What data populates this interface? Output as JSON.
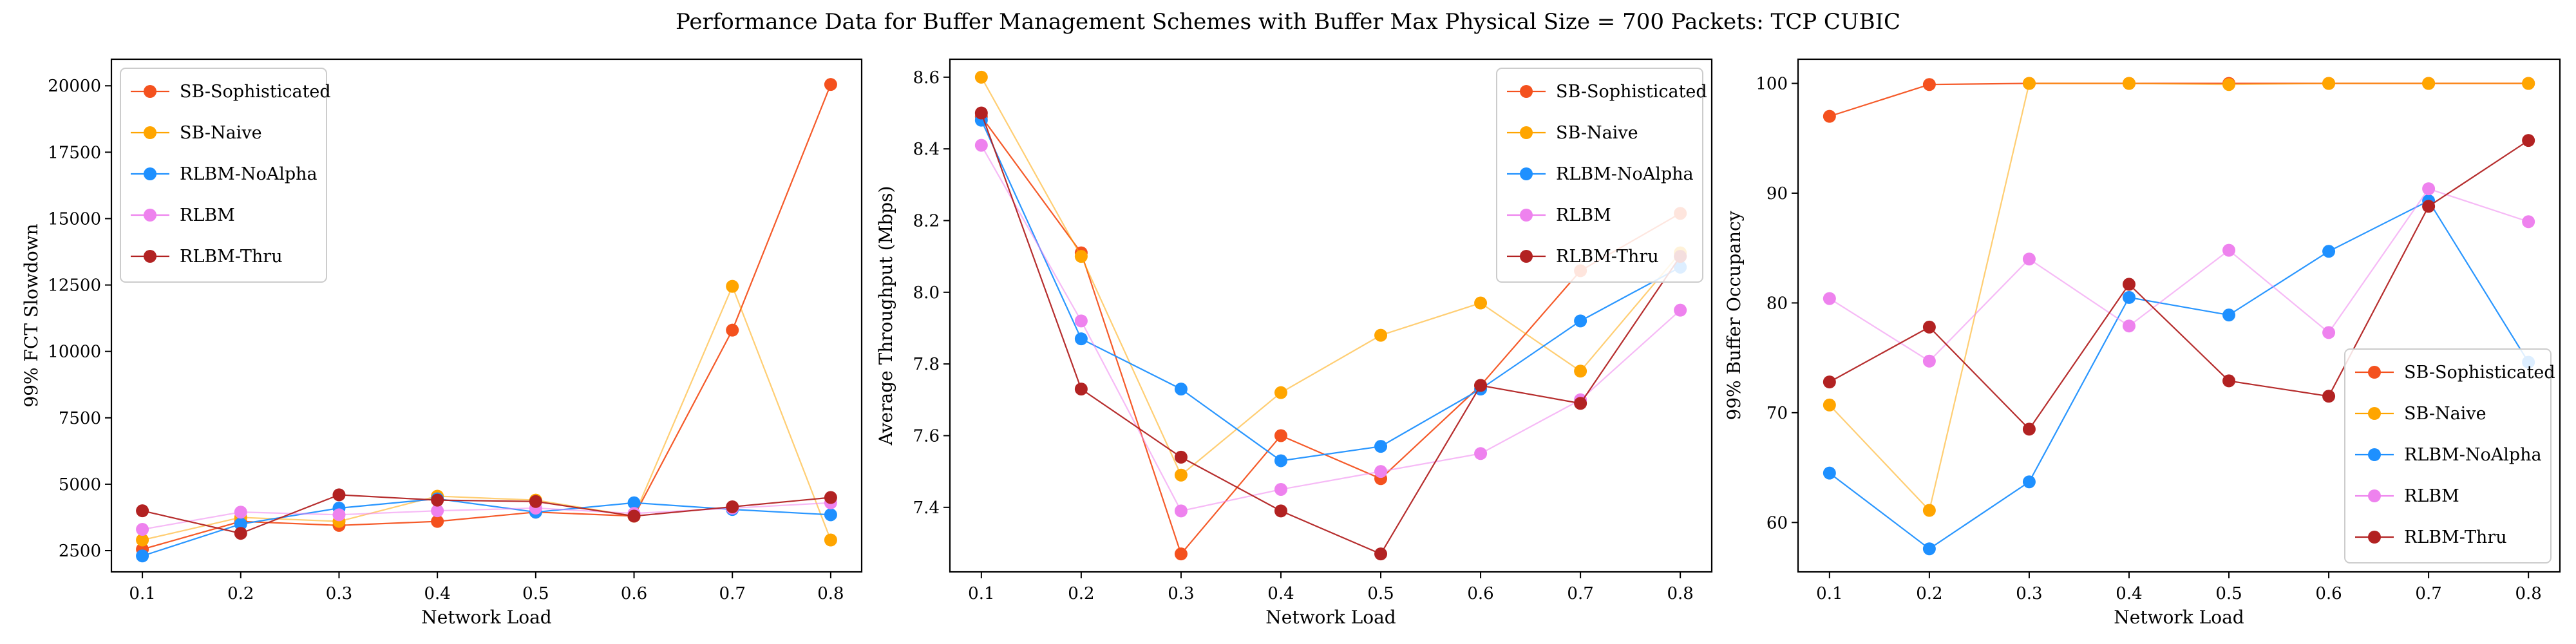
{
  "figure": {
    "title": "Performance Data for Buffer Management Schemes with Buffer Max Physical Size = 700 Packets: TCP CUBIC"
  },
  "chart_data": [
    {
      "type": "line",
      "title": "",
      "xlabel": "Network Load",
      "ylabel": "99% FCT Slowdown",
      "x": [
        0.1,
        0.2,
        0.3,
        0.4,
        0.5,
        0.6,
        0.7,
        0.8
      ],
      "xticks": [
        "0.1",
        "0.2",
        "0.3",
        "0.4",
        "0.5",
        "0.6",
        "0.7",
        "0.8"
      ],
      "yticks": [
        "2500",
        "5000",
        "7500",
        "10000",
        "12500",
        "15000",
        "17500",
        "20000"
      ],
      "ylim": [
        1700,
        21000
      ],
      "grid": false,
      "legend": "upper-left",
      "series": [
        {
          "name": "SB-Sophisticated",
          "color": "#f4511e",
          "values": [
            2550,
            3600,
            3450,
            3600,
            3950,
            3800,
            10800,
            20050
          ]
        },
        {
          "name": "SB-Naive",
          "color": "#ffa500",
          "values": [
            2900,
            3750,
            3600,
            4550,
            4400,
            3800,
            12450,
            2900
          ]
        },
        {
          "name": "RLBM-NoAlpha",
          "color": "#1e90ff",
          "values": [
            2300,
            3500,
            4100,
            4450,
            3950,
            4300,
            4050,
            3850
          ]
        },
        {
          "name": "RLBM",
          "color": "#ee82ee",
          "values": [
            3300,
            3950,
            3850,
            4000,
            4100,
            3900,
            4100,
            4300
          ]
        },
        {
          "name": "RLBM-Thru",
          "color": "#b22222",
          "values": [
            4000,
            3150,
            4600,
            4400,
            4350,
            3800,
            4150,
            4500
          ]
        }
      ]
    },
    {
      "type": "line",
      "title": "",
      "xlabel": "Network Load",
      "ylabel": "Average Throughput (Mbps)",
      "x": [
        0.1,
        0.2,
        0.3,
        0.4,
        0.5,
        0.6,
        0.7,
        0.8
      ],
      "xticks": [
        "0.1",
        "0.2",
        "0.3",
        "0.4",
        "0.5",
        "0.6",
        "0.7",
        "0.8"
      ],
      "yticks": [
        "7.4",
        "7.6",
        "7.8",
        "8.0",
        "8.2",
        "8.4",
        "8.6"
      ],
      "ylim": [
        7.22,
        8.65
      ],
      "grid": false,
      "legend": "upper-right",
      "series": [
        {
          "name": "SB-Sophisticated",
          "color": "#f4511e",
          "values": [
            8.49,
            8.11,
            7.27,
            7.6,
            7.48,
            7.74,
            8.06,
            8.22
          ]
        },
        {
          "name": "SB-Naive",
          "color": "#ffa500",
          "values": [
            8.6,
            8.1,
            7.49,
            7.72,
            7.88,
            7.97,
            7.78,
            8.11
          ]
        },
        {
          "name": "RLBM-NoAlpha",
          "color": "#1e90ff",
          "values": [
            8.48,
            7.87,
            7.73,
            7.53,
            7.57,
            7.73,
            7.92,
            8.07
          ]
        },
        {
          "name": "RLBM",
          "color": "#ee82ee",
          "values": [
            8.41,
            7.92,
            7.39,
            7.45,
            7.5,
            7.55,
            7.7,
            7.95
          ]
        },
        {
          "name": "RLBM-Thru",
          "color": "#b22222",
          "values": [
            8.5,
            7.73,
            7.54,
            7.39,
            7.27,
            7.74,
            7.69,
            8.1
          ]
        }
      ]
    },
    {
      "type": "line",
      "title": "",
      "xlabel": "Network Load",
      "ylabel": "99% Buffer Occupancy",
      "x": [
        0.1,
        0.2,
        0.3,
        0.4,
        0.5,
        0.6,
        0.7,
        0.8
      ],
      "xticks": [
        "0.1",
        "0.2",
        "0.3",
        "0.4",
        "0.5",
        "0.6",
        "0.7",
        "0.8"
      ],
      "yticks": [
        "60",
        "70",
        "80",
        "90",
        "100"
      ],
      "ylim": [
        55.5,
        102.2
      ],
      "grid": false,
      "legend": "lower-right",
      "series": [
        {
          "name": "SB-Sophisticated",
          "color": "#f4511e",
          "values": [
            97,
            99.9,
            100,
            100,
            100,
            100,
            100,
            100
          ]
        },
        {
          "name": "SB-Naive",
          "color": "#ffa500",
          "values": [
            70.7,
            61.1,
            100,
            100,
            99.9,
            100,
            100,
            100
          ]
        },
        {
          "name": "RLBM-NoAlpha",
          "color": "#1e90ff",
          "values": [
            64.5,
            57.6,
            63.7,
            80.5,
            78.9,
            84.7,
            89.3,
            74.6
          ]
        },
        {
          "name": "RLBM",
          "color": "#ee82ee",
          "values": [
            80.4,
            74.7,
            84,
            77.9,
            84.8,
            77.3,
            90.4,
            87.4
          ]
        },
        {
          "name": "RLBM-Thru",
          "color": "#b22222",
          "values": [
            72.8,
            77.8,
            68.5,
            81.7,
            72.9,
            71.5,
            88.8,
            94.8
          ]
        }
      ]
    }
  ]
}
